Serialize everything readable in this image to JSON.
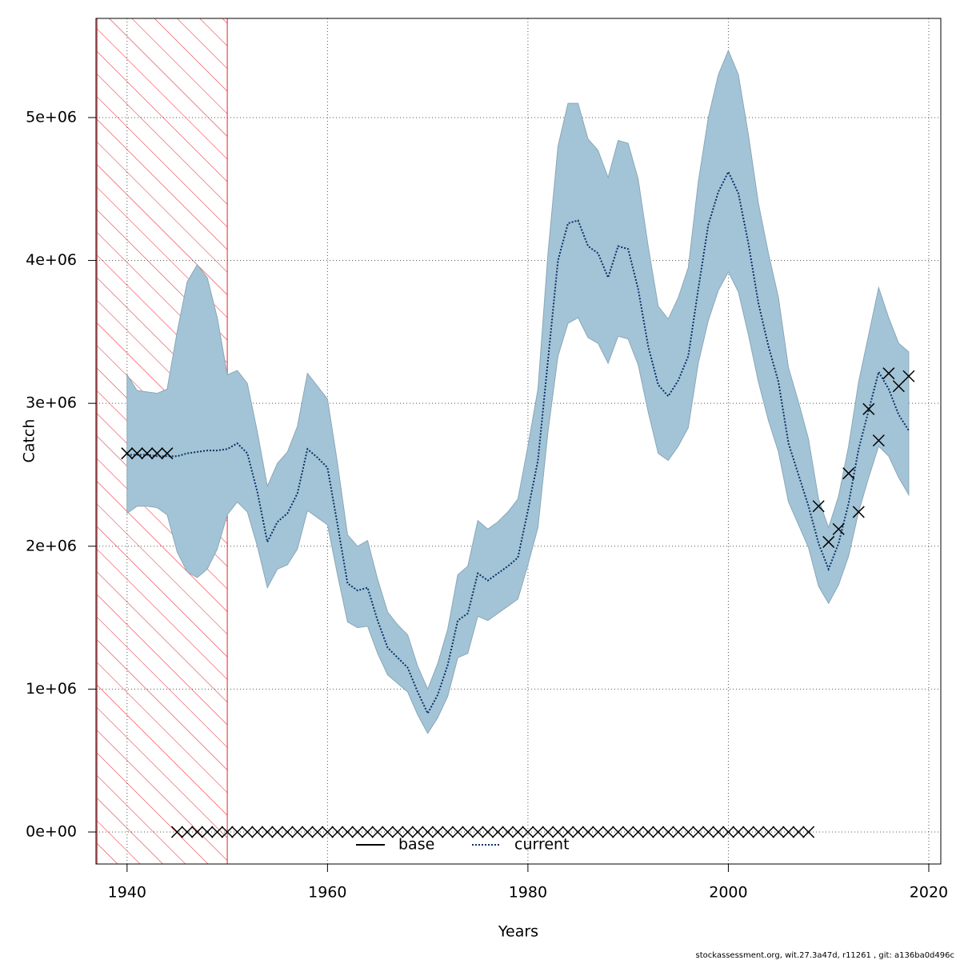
{
  "chart_data": {
    "type": "line",
    "xlabel": "Years",
    "ylabel": "Catch",
    "footer": "stockassessment.org, wit.27.3a47d, r11261 , git: a136ba0d496c",
    "xlim": [
      1936.9,
      2021.2
    ],
    "ylim": [
      -224000,
      5694000
    ],
    "xticks": [
      1940,
      1960,
      1980,
      2000,
      2020
    ],
    "yticks": [
      {
        "value": 0,
        "label": "0e+00"
      },
      {
        "value": 1000000,
        "label": "1e+06"
      },
      {
        "value": 2000000,
        "label": "2e+06"
      },
      {
        "value": 3000000,
        "label": "3e+06"
      },
      {
        "value": 4000000,
        "label": "4e+06"
      },
      {
        "value": 5000000,
        "label": "5e+06"
      }
    ],
    "grid": true,
    "highlight_x": [
      1937,
      1950
    ],
    "highlight_color": "#e8202a",
    "band_color": "#a3c4d6",
    "x": [
      1940,
      1941,
      1942,
      1943,
      1944,
      1945,
      1946,
      1947,
      1948,
      1949,
      1950,
      1951,
      1952,
      1953,
      1954,
      1955,
      1956,
      1957,
      1958,
      1959,
      1960,
      1961,
      1962,
      1963,
      1964,
      1965,
      1966,
      1967,
      1968,
      1969,
      1970,
      1971,
      1972,
      1973,
      1974,
      1975,
      1976,
      1977,
      1978,
      1979,
      1980,
      1981,
      1982,
      1983,
      1984,
      1985,
      1986,
      1987,
      1988,
      1989,
      1990,
      1991,
      1992,
      1993,
      1994,
      1995,
      1996,
      1997,
      1998,
      1999,
      2000,
      2001,
      2002,
      2003,
      2004,
      2005,
      2006,
      2007,
      2008,
      2009,
      2010,
      2011,
      2012,
      2013,
      2014,
      2015,
      2016,
      2017,
      2018
    ],
    "legend": [
      {
        "name": "base",
        "color": "#000000",
        "dashed": false
      },
      {
        "name": "current",
        "color": "#08306b",
        "dashed": true
      }
    ],
    "series": [
      {
        "name": "current",
        "color": "#08306b",
        "values": [
          2640000.0,
          2640000.0,
          2640000.0,
          2630000.0,
          2630000.0,
          2630000.0,
          2650000.0,
          2660000.0,
          2670000.0,
          2670000.0,
          2680000.0,
          2720000.0,
          2650000.0,
          2380000.0,
          2030000.0,
          2170000.0,
          2230000.0,
          2370000.0,
          2680000.0,
          2620000.0,
          2550000.0,
          2150000.0,
          1740000.0,
          1690000.0,
          1710000.0,
          1480000.0,
          1290000.0,
          1220000.0,
          1150000.0,
          980000.0,
          830000.0,
          960000.0,
          1170000.0,
          1480000.0,
          1530000.0,
          1810000.0,
          1760000.0,
          1810000.0,
          1860000.0,
          1920000.0,
          2250000.0,
          2600000.0,
          3300000.0,
          4000000.0,
          4260000.0,
          4280000.0,
          4100000.0,
          4050000.0,
          3880000.0,
          4100000.0,
          4080000.0,
          3800000.0,
          3400000.0,
          3130000.0,
          3050000.0,
          3160000.0,
          3330000.0,
          3800000.0,
          4250000.0,
          4480000.0,
          4620000.0,
          4470000.0,
          4120000.0,
          3700000.0,
          3400000.0,
          3150000.0,
          2720000.0,
          2500000.0,
          2280000.0,
          2020000.0,
          1840000.0,
          2020000.0,
          2300000.0,
          2680000.0,
          2950000.0,
          3220000.0,
          3100000.0,
          2920000.0,
          2810000.0
        ],
        "upper": [
          3200000.0,
          3090000.0,
          3080000.0,
          3070000.0,
          3100000.0,
          3500000.0,
          3850000.0,
          3970000.0,
          3880000.0,
          3600000.0,
          3200000.0,
          3230000.0,
          3140000.0,
          2800000.0,
          2420000.0,
          2580000.0,
          2660000.0,
          2840000.0,
          3210000.0,
          3120000.0,
          3030000.0,
          2580000.0,
          2080000.0,
          2000000.0,
          2040000.0,
          1770000.0,
          1540000.0,
          1450000.0,
          1380000.0,
          1160000.0,
          1000000.0,
          1180000.0,
          1420000.0,
          1800000.0,
          1860000.0,
          2180000.0,
          2120000.0,
          2170000.0,
          2240000.0,
          2330000.0,
          2700000.0,
          3100000.0,
          4050000.0,
          4800000.0,
          5100000.0,
          5100000.0,
          4850000.0,
          4770000.0,
          4580000.0,
          4840000.0,
          4820000.0,
          4570000.0,
          4100000.0,
          3680000.0,
          3590000.0,
          3740000.0,
          3950000.0,
          4550000.0,
          5000000.0,
          5300000.0,
          5470000.0,
          5300000.0,
          4880000.0,
          4400000.0,
          4050000.0,
          3740000.0,
          3250000.0,
          3010000.0,
          2750000.0,
          2330000.0,
          2130000.0,
          2350000.0,
          2700000.0,
          3150000.0,
          3480000.0,
          3810000.0,
          3600000.0,
          3420000.0,
          3360000.0
        ],
        "lower": [
          2230000.0,
          2280000.0,
          2280000.0,
          2270000.0,
          2220000.0,
          1960000.0,
          1820000.0,
          1780000.0,
          1840000.0,
          1980000.0,
          2220000.0,
          2310000.0,
          2240000.0,
          2000000.0,
          1710000.0,
          1840000.0,
          1870000.0,
          1980000.0,
          2250000.0,
          2200000.0,
          2150000.0,
          1800000.0,
          1470000.0,
          1430000.0,
          1440000.0,
          1250000.0,
          1100000.0,
          1040000.0,
          980000.0,
          820000.0,
          690000.0,
          800000.0,
          950000.0,
          1220000.0,
          1250000.0,
          1510000.0,
          1480000.0,
          1530000.0,
          1580000.0,
          1630000.0,
          1870000.0,
          2130000.0,
          2800000.0,
          3330000.0,
          3560000.0,
          3600000.0,
          3460000.0,
          3420000.0,
          3280000.0,
          3470000.0,
          3450000.0,
          3270000.0,
          2940000.0,
          2650000.0,
          2600000.0,
          2700000.0,
          2830000.0,
          3280000.0,
          3580000.0,
          3790000.0,
          3920000.0,
          3780000.0,
          3480000.0,
          3150000.0,
          2880000.0,
          2660000.0,
          2310000.0,
          2150000.0,
          1990000.0,
          1720000.0,
          1600000.0,
          1730000.0,
          1930000.0,
          2240000.0,
          2480000.0,
          2700000.0,
          2630000.0,
          2480000.0,
          2360000.0
        ]
      },
      {
        "color": "#000000",
        "marker": "x",
        "values": [
          2650000.0,
          2650000.0,
          2650000.0,
          2650000.0,
          2650000.0,
          0,
          0,
          0,
          0,
          0,
          0,
          0,
          0,
          0,
          0,
          0,
          0,
          0,
          0,
          0,
          0,
          0,
          0,
          0,
          0,
          0,
          0,
          0,
          0,
          0,
          0,
          0,
          0,
          0,
          0,
          0,
          0,
          0,
          0,
          0,
          0,
          0,
          0,
          0,
          0,
          0,
          0,
          0,
          0,
          0,
          0,
          0,
          0,
          0,
          0,
          0,
          0,
          0,
          0,
          0,
          0,
          0,
          0,
          0,
          0,
          0,
          0,
          0,
          0,
          2280000.0,
          2030000.0,
          2120000.0,
          2510000.0,
          2240000.0,
          2960000.0,
          2740000.0,
          3210000.0,
          3120000.0,
          3190000.0
        ]
      }
    ]
  }
}
